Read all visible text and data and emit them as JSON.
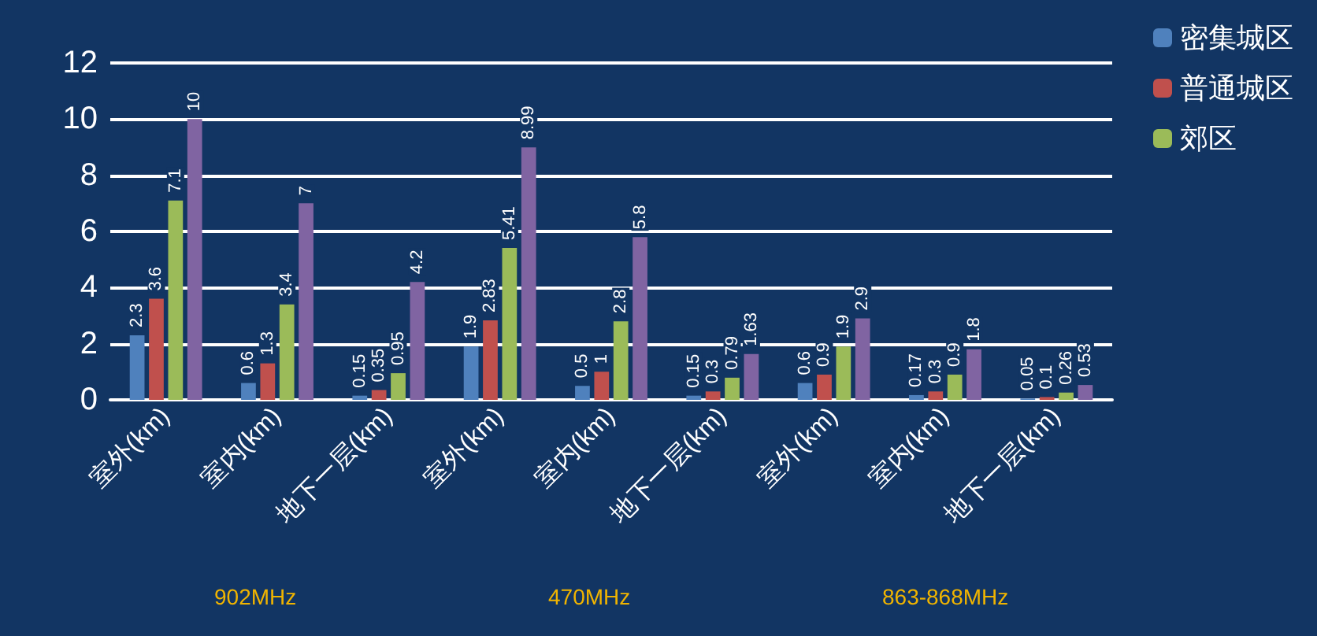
{
  "chart_data": {
    "type": "bar",
    "categories": [
      "室外(km)",
      "室内(km)",
      "地下一层(km)",
      "室外(km)",
      "室内(km)",
      "地下一层(km)",
      "室外(km)",
      "室内(km)",
      "地下一层(km)"
    ],
    "series": [
      {
        "name": "密集城区",
        "color": "#4f81bd",
        "values": [
          2.3,
          0.6,
          0.15,
          1.9,
          0.5,
          0.15,
          0.6,
          0.17,
          0.05
        ]
      },
      {
        "name": "普通城区",
        "color": "#c0504d",
        "values": [
          3.6,
          1.3,
          0.35,
          2.83,
          1,
          0.3,
          0.9,
          0.3,
          0.1
        ]
      },
      {
        "name": "郊区",
        "color": "#9bbb59",
        "values": [
          7.1,
          3.4,
          0.95,
          5.41,
          2.8,
          0.79,
          1.9,
          0.9,
          0.26
        ]
      },
      {
        "color": "#8064a2",
        "values": [
          10,
          7,
          4.2,
          8.99,
          5.8,
          1.63,
          2.9,
          1.8,
          0.53
        ]
      }
    ],
    "ylim": [
      0,
      12
    ],
    "yticks": [
      0,
      2,
      4,
      6,
      8,
      10,
      12
    ],
    "grid": "y",
    "legend": "top right",
    "data_labels": true,
    "annotations": [
      "902MHz",
      "470MHz",
      "863-868MHz"
    ]
  }
}
